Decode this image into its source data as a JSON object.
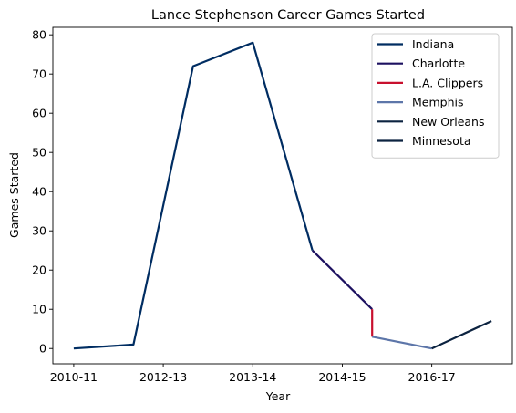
{
  "chart_data": {
    "type": "line",
    "title": "Lance Stephenson Career Games Started",
    "xlabel": "Year",
    "ylabel": "Games Started",
    "x_tick_labels": [
      "2010-11",
      "2012-13",
      "2013-14",
      "2014-15",
      "2016-17"
    ],
    "x_tick_positions": [
      0,
      1.5,
      3,
      4.5,
      6
    ],
    "xlim": [
      -0.35,
      7.35
    ],
    "ylim": [
      -3.9,
      81.9
    ],
    "y_ticks": [
      0,
      10,
      20,
      30,
      40,
      50,
      60,
      70,
      80
    ],
    "grid": false,
    "legend_position": "top-right",
    "series": [
      {
        "name": "Indiana",
        "color": "#002D62",
        "points": [
          [
            0,
            0
          ],
          [
            1,
            1
          ],
          [
            2,
            72
          ],
          [
            3,
            78
          ],
          [
            4,
            25
          ]
        ]
      },
      {
        "name": "Charlotte",
        "color": "#1D1160",
        "points": [
          [
            4,
            25
          ],
          [
            5,
            10
          ]
        ]
      },
      {
        "name": "L.A. Clippers",
        "color": "#C8102E",
        "points": [
          [
            5,
            10
          ],
          [
            5,
            3
          ]
        ]
      },
      {
        "name": "Memphis",
        "color": "#5D76A9",
        "points": [
          [
            5,
            3
          ],
          [
            6,
            0
          ]
        ]
      },
      {
        "name": "New Orleans",
        "color": "#0C2340",
        "points": [
          [
            6,
            0
          ],
          [
            7,
            7
          ]
        ]
      },
      {
        "name": "Minnesota",
        "color": "#0C2340",
        "points": [
          [
            7,
            7
          ]
        ]
      }
    ]
  }
}
